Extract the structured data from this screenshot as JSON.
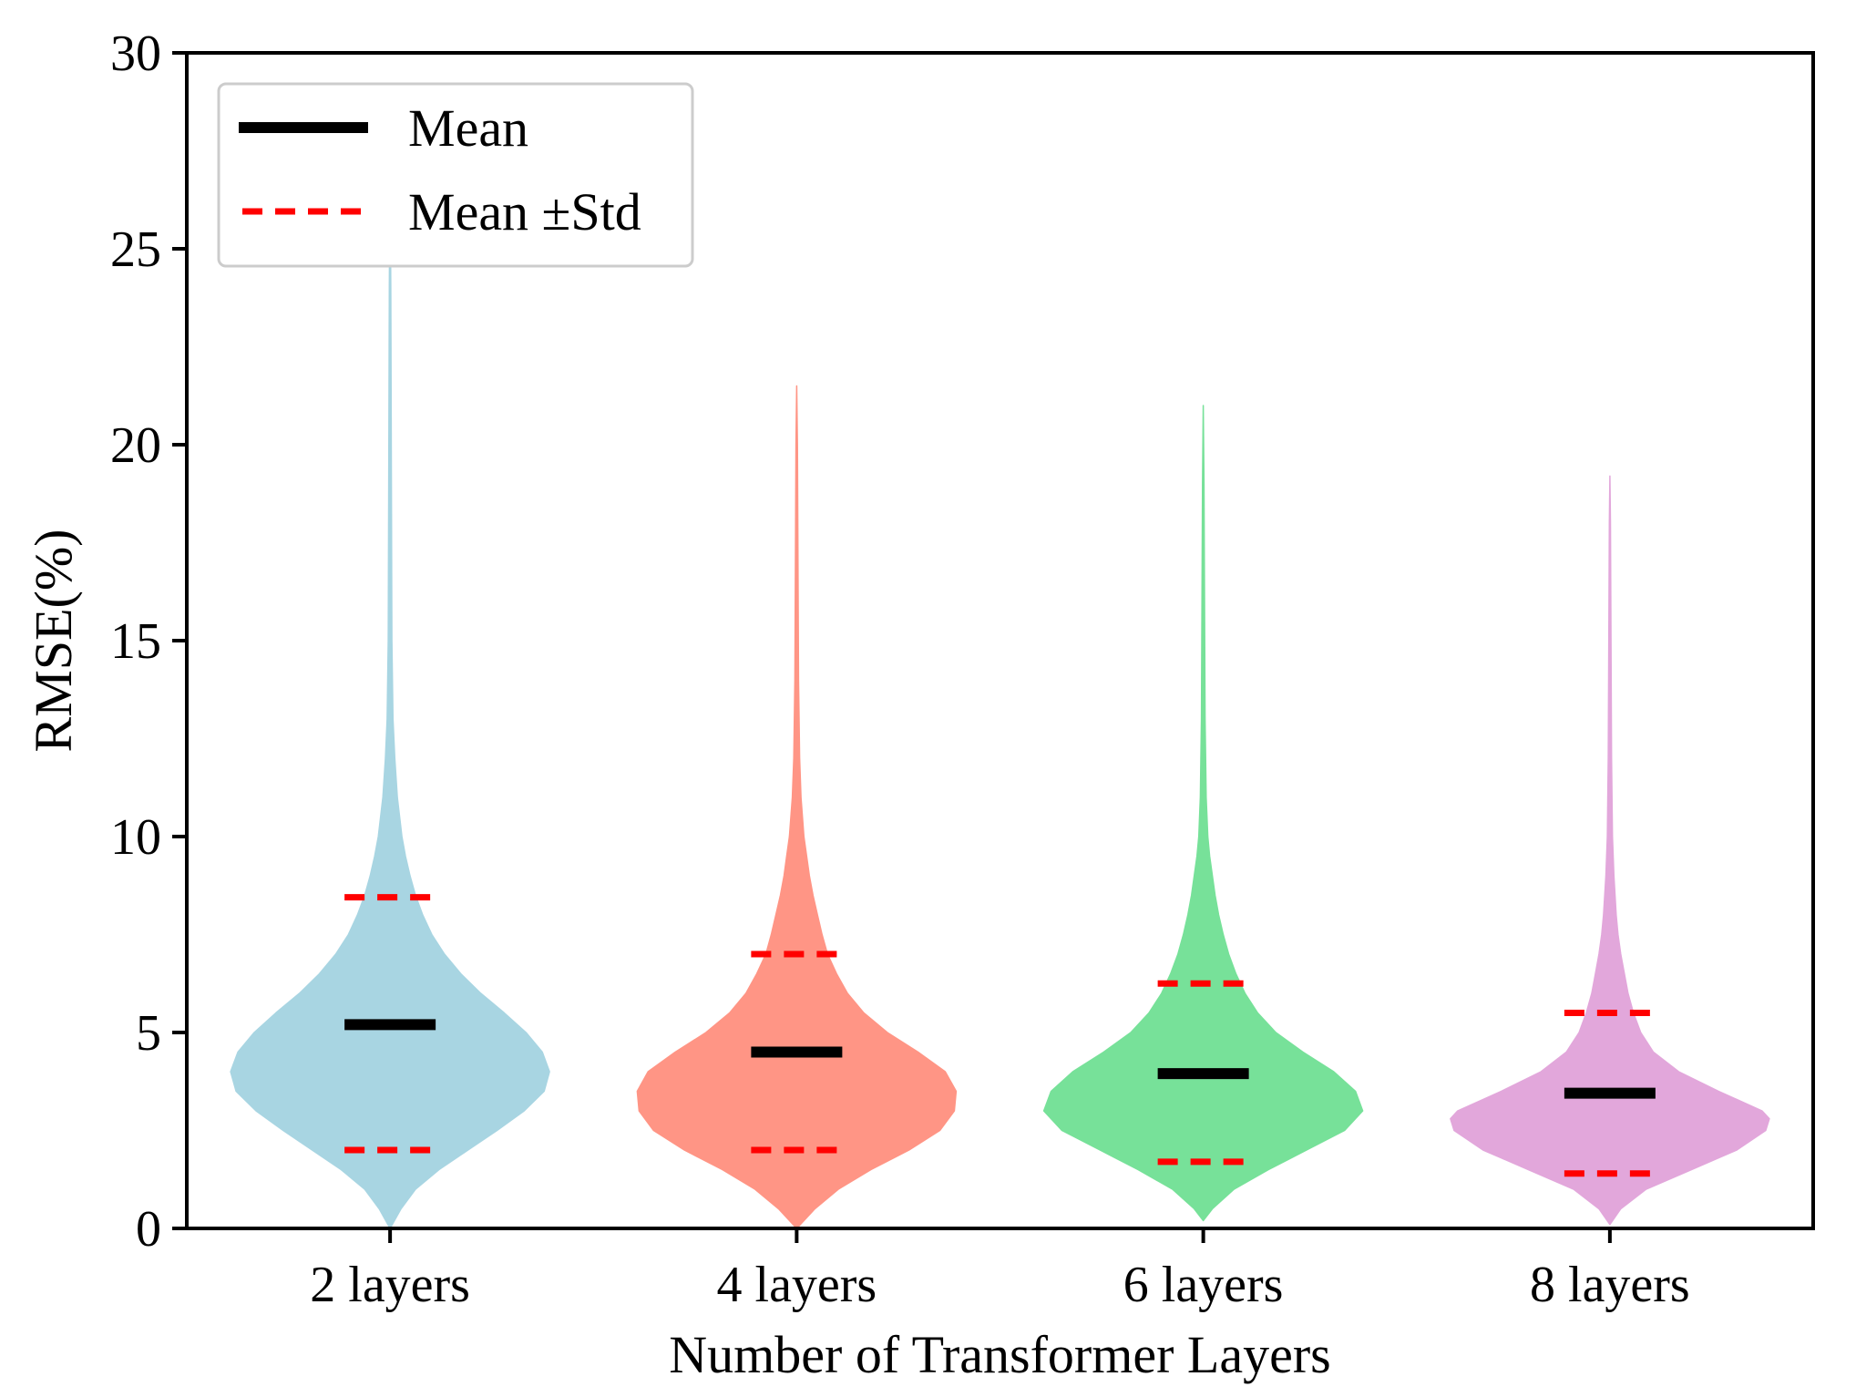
{
  "chart_data": {
    "type": "violin",
    "title": "",
    "xlabel": "Number of Transformer Layers",
    "ylabel": "RMSE(%)",
    "ylim": [
      0,
      30
    ],
    "yticks": [
      0,
      5,
      10,
      15,
      20,
      25,
      30
    ],
    "grid": false,
    "legend": {
      "placement": "top-left",
      "entries": [
        {
          "label": "Mean",
          "style": "solid",
          "color": "#000000"
        },
        {
          "label": "Mean ±Std",
          "style": "dashed",
          "color": "#ff0000"
        }
      ]
    },
    "categories": [
      "2 layers",
      "4 layers",
      "6 layers",
      "8 layers"
    ],
    "series": [
      {
        "name": "2 layers",
        "color": "#a8d5e2",
        "mean": 5.2,
        "mean_minus_std": 2.0,
        "mean_plus_std": 8.45,
        "min": 0.0,
        "max": 27.0,
        "density_profile": [
          [
            0.0,
            0.0
          ],
          [
            0.5,
            0.06
          ],
          [
            1.0,
            0.14
          ],
          [
            1.5,
            0.27
          ],
          [
            2.0,
            0.43
          ],
          [
            2.5,
            0.59
          ],
          [
            3.0,
            0.74
          ],
          [
            3.5,
            0.85
          ],
          [
            4.0,
            0.88
          ],
          [
            4.5,
            0.84
          ],
          [
            5.0,
            0.75
          ],
          [
            5.5,
            0.63
          ],
          [
            6.0,
            0.5
          ],
          [
            6.5,
            0.39
          ],
          [
            7.0,
            0.3
          ],
          [
            7.5,
            0.23
          ],
          [
            8.0,
            0.18
          ],
          [
            8.5,
            0.14
          ],
          [
            9.0,
            0.11
          ],
          [
            9.5,
            0.085
          ],
          [
            10.0,
            0.065
          ],
          [
            11.0,
            0.04
          ],
          [
            12.0,
            0.026
          ],
          [
            13.0,
            0.016
          ],
          [
            15.0,
            0.01
          ],
          [
            18.0,
            0.008
          ],
          [
            21.0,
            0.006
          ],
          [
            24.0,
            0.004
          ],
          [
            27.0,
            0.0
          ]
        ]
      },
      {
        "name": "4 layers",
        "color": "#ff9585",
        "mean": 4.5,
        "mean_minus_std": 2.0,
        "mean_plus_std": 7.0,
        "min": 0.0,
        "max": 21.5,
        "density_profile": [
          [
            0.0,
            0.0
          ],
          [
            0.5,
            0.1
          ],
          [
            1.0,
            0.23
          ],
          [
            1.5,
            0.41
          ],
          [
            2.0,
            0.62
          ],
          [
            2.5,
            0.79
          ],
          [
            3.0,
            0.87
          ],
          [
            3.5,
            0.88
          ],
          [
            4.0,
            0.82
          ],
          [
            4.5,
            0.67
          ],
          [
            5.0,
            0.5
          ],
          [
            5.5,
            0.37
          ],
          [
            6.0,
            0.28
          ],
          [
            6.5,
            0.22
          ],
          [
            7.0,
            0.17
          ],
          [
            7.5,
            0.14
          ],
          [
            8.0,
            0.115
          ],
          [
            8.5,
            0.09
          ],
          [
            9.0,
            0.07
          ],
          [
            9.5,
            0.055
          ],
          [
            10.0,
            0.04
          ],
          [
            11.0,
            0.024
          ],
          [
            12.0,
            0.016
          ],
          [
            14.0,
            0.01
          ],
          [
            16.0,
            0.008
          ],
          [
            18.0,
            0.006
          ],
          [
            20.0,
            0.004
          ],
          [
            21.5,
            0.0
          ]
        ]
      },
      {
        "name": "6 layers",
        "color": "#77e199",
        "mean": 3.95,
        "mean_minus_std": 1.7,
        "mean_plus_std": 6.25,
        "min": 0.2,
        "max": 21.0,
        "density_profile": [
          [
            0.2,
            0.0
          ],
          [
            0.5,
            0.05
          ],
          [
            1.0,
            0.17
          ],
          [
            1.5,
            0.36
          ],
          [
            2.0,
            0.57
          ],
          [
            2.5,
            0.78
          ],
          [
            3.0,
            0.88
          ],
          [
            3.5,
            0.84
          ],
          [
            4.0,
            0.72
          ],
          [
            4.5,
            0.55
          ],
          [
            5.0,
            0.4
          ],
          [
            5.5,
            0.3
          ],
          [
            6.0,
            0.23
          ],
          [
            6.5,
            0.18
          ],
          [
            7.0,
            0.14
          ],
          [
            7.5,
            0.11
          ],
          [
            8.0,
            0.085
          ],
          [
            8.5,
            0.065
          ],
          [
            9.0,
            0.05
          ],
          [
            9.5,
            0.035
          ],
          [
            10.0,
            0.025
          ],
          [
            11.0,
            0.016
          ],
          [
            13.0,
            0.01
          ],
          [
            15.0,
            0.008
          ],
          [
            17.0,
            0.006
          ],
          [
            19.0,
            0.004
          ],
          [
            21.0,
            0.0
          ]
        ]
      },
      {
        "name": "8 layers",
        "color": "#e2a7db",
        "mean": 3.45,
        "mean_minus_std": 1.4,
        "mean_plus_std": 5.5,
        "min": 0.1,
        "max": 19.2,
        "density_profile": [
          [
            0.1,
            0.0
          ],
          [
            0.5,
            0.06
          ],
          [
            1.0,
            0.2
          ],
          [
            1.5,
            0.45
          ],
          [
            2.0,
            0.7
          ],
          [
            2.5,
            0.86
          ],
          [
            2.8,
            0.88
          ],
          [
            3.0,
            0.84
          ],
          [
            3.5,
            0.6
          ],
          [
            4.0,
            0.38
          ],
          [
            4.5,
            0.24
          ],
          [
            5.0,
            0.17
          ],
          [
            5.5,
            0.13
          ],
          [
            6.0,
            0.1
          ],
          [
            6.5,
            0.08
          ],
          [
            7.0,
            0.06
          ],
          [
            7.5,
            0.045
          ],
          [
            8.0,
            0.035
          ],
          [
            9.0,
            0.022
          ],
          [
            10.0,
            0.014
          ],
          [
            12.0,
            0.009
          ],
          [
            14.0,
            0.007
          ],
          [
            16.0,
            0.005
          ],
          [
            18.0,
            0.003
          ],
          [
            19.2,
            0.0
          ]
        ]
      }
    ]
  }
}
